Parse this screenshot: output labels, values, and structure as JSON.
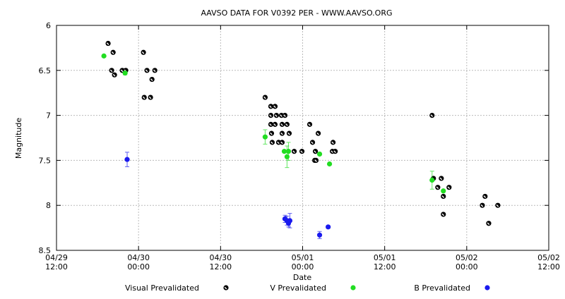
{
  "chart_data": {
    "type": "scatter",
    "title": "AAVSO DATA FOR V0392 PER - WWW.AAVSO.ORG",
    "xlabel": "Date",
    "ylabel": "Magnitude",
    "y_inverted": true,
    "ylim": [
      8.5,
      6
    ],
    "xlim": [
      "04/29 12:00",
      "05/02 12:00"
    ],
    "grid": true,
    "legend_position": "bottom",
    "x_ticks": [
      [
        "04/29",
        "12:00"
      ],
      [
        "04/30",
        "00:00"
      ],
      [
        "04/30",
        "12:00"
      ],
      [
        "05/01",
        "00:00"
      ],
      [
        "05/01",
        "12:00"
      ],
      [
        "05/02",
        "00:00"
      ],
      [
        "05/02",
        "12:00"
      ]
    ],
    "y_ticks": [
      "6",
      "6.5",
      "7",
      "7.5",
      "8",
      "8.5"
    ],
    "series": [
      {
        "name": "Visual Prevalidated",
        "color": "#000000",
        "points": [
          [
            "04/29 19:33",
            6.2
          ],
          [
            "04/29 20:17",
            6.3
          ],
          [
            "04/29 20:04",
            6.5
          ],
          [
            "04/29 20:29",
            6.55
          ],
          [
            "04/29 21:37",
            6.5
          ],
          [
            "04/29 22:08",
            6.5
          ],
          [
            "04/30 00:43",
            6.3
          ],
          [
            "04/30 01:14",
            6.5
          ],
          [
            "04/30 02:23",
            6.5
          ],
          [
            "04/30 01:58",
            6.6
          ],
          [
            "04/30 00:50",
            6.8
          ],
          [
            "04/30 01:45",
            6.8
          ],
          [
            "04/30 18:31",
            6.8
          ],
          [
            "04/30 19:21",
            6.9
          ],
          [
            "04/30 19:58",
            6.9
          ],
          [
            "04/30 19:21",
            7.0
          ],
          [
            "04/30 20:10",
            7.0
          ],
          [
            "04/30 20:54",
            7.0
          ],
          [
            "04/30 21:25",
            7.0
          ],
          [
            "04/30 19:21",
            7.1
          ],
          [
            "04/30 19:58",
            7.1
          ],
          [
            "04/30 21:00",
            7.1
          ],
          [
            "04/30 21:43",
            7.1
          ],
          [
            "05/01 01:02",
            7.1
          ],
          [
            "04/30 19:27",
            7.2
          ],
          [
            "04/30 21:00",
            7.2
          ],
          [
            "04/30 22:02",
            7.2
          ],
          [
            "05/01 02:17",
            7.2
          ],
          [
            "04/30 19:33",
            7.3
          ],
          [
            "04/30 20:29",
            7.3
          ],
          [
            "04/30 21:00",
            7.3
          ],
          [
            "05/01 01:27",
            7.3
          ],
          [
            "05/01 04:27",
            7.3
          ],
          [
            "04/30 22:46",
            7.4
          ],
          [
            "04/30 23:54",
            7.4
          ],
          [
            "05/01 01:52",
            7.4
          ],
          [
            "05/01 04:21",
            7.4
          ],
          [
            "05/01 04:46",
            7.4
          ],
          [
            "05/01 01:46",
            7.5
          ],
          [
            "05/01 01:58",
            7.5
          ],
          [
            "05/01 18:56",
            7.0
          ],
          [
            "05/01 19:08",
            7.7
          ],
          [
            "05/01 20:17",
            7.7
          ],
          [
            "05/01 19:46",
            7.8
          ],
          [
            "05/01 21:25",
            7.8
          ],
          [
            "05/01 20:35",
            7.9
          ],
          [
            "05/01 20:35",
            8.1
          ],
          [
            "05/02 02:41",
            7.9
          ],
          [
            "05/02 02:17",
            8.0
          ],
          [
            "05/02 04:33",
            8.0
          ],
          [
            "05/02 03:13",
            8.2
          ]
        ]
      },
      {
        "name": "V Prevalidated",
        "color": "#22dd22",
        "points": [
          [
            "04/29 18:56",
            6.34,
            0
          ],
          [
            "04/29 22:02",
            6.53,
            0.02
          ],
          [
            "04/30 18:31",
            7.24,
            0.08
          ],
          [
            "04/30 21:19",
            7.4,
            0
          ],
          [
            "04/30 21:56",
            7.4,
            0.1
          ],
          [
            "04/30 21:43",
            7.46,
            0.12
          ],
          [
            "05/01 02:29",
            7.43,
            0
          ],
          [
            "05/01 03:56",
            7.54,
            0
          ],
          [
            "05/01 18:56",
            7.72,
            0.1
          ],
          [
            "05/01 20:35",
            7.84,
            0
          ]
        ]
      },
      {
        "name": "B Prevalidated",
        "color": "#1a1aee",
        "points": [
          [
            "04/29 22:20",
            7.49,
            0.08
          ],
          [
            "04/30 21:25",
            8.15,
            0.04
          ],
          [
            "04/30 21:43",
            8.17,
            0.05
          ],
          [
            "04/30 21:56",
            8.2,
            0.04
          ],
          [
            "04/30 22:08",
            8.17,
            0.08
          ],
          [
            "05/01 02:29",
            8.33,
            0.04
          ],
          [
            "05/01 03:44",
            8.24,
            0
          ]
        ]
      }
    ]
  }
}
